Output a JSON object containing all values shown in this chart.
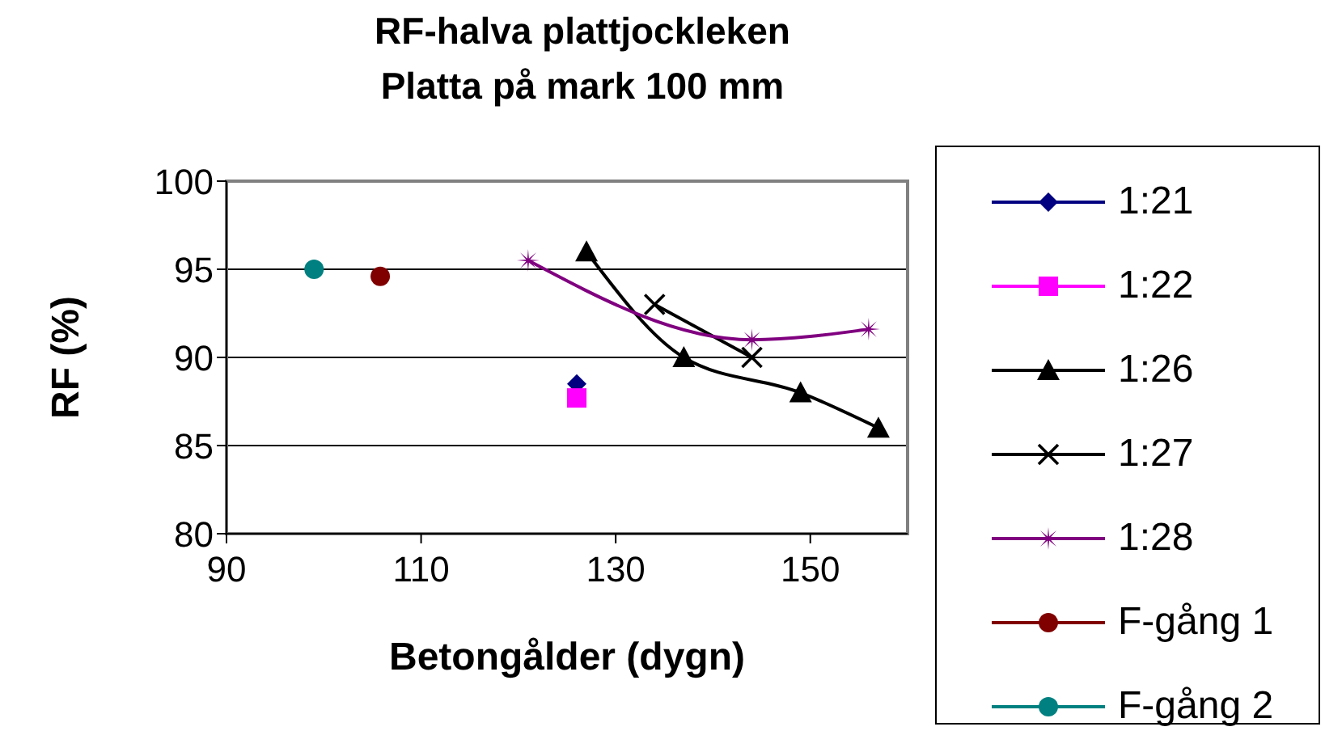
{
  "chart_data": {
    "type": "line",
    "title": "RF-halva plattjockleken",
    "subtitle": "Platta på mark 100 mm",
    "xlabel": "Betongålder (dygn)",
    "ylabel": "RF (%)",
    "xlim": [
      90,
      160
    ],
    "xticks": [
      90,
      110,
      130,
      150
    ],
    "ylim": [
      80,
      100
    ],
    "yticks": [
      80,
      85,
      90,
      95,
      100
    ],
    "grid": "y",
    "legend": "right",
    "series": [
      {
        "name": "1:21",
        "color": "#000080",
        "marker": "diamond",
        "x": [
          126
        ],
        "values": [
          88.5
        ]
      },
      {
        "name": "1:22",
        "color": "#ff00ff",
        "marker": "square",
        "x": [
          126
        ],
        "values": [
          87.7
        ]
      },
      {
        "name": "1:26",
        "color": "#000000",
        "marker": "triangle",
        "x": [
          127,
          137,
          149,
          157
        ],
        "values": [
          96,
          90,
          88,
          86
        ]
      },
      {
        "name": "1:27",
        "color": "#000000",
        "marker": "cross",
        "x": [
          134,
          144
        ],
        "values": [
          93,
          90
        ]
      },
      {
        "name": "1:28",
        "color": "#800080",
        "marker": "star",
        "x": [
          121,
          144,
          156
        ],
        "values": [
          95.5,
          91,
          91.6
        ]
      },
      {
        "name": "F-gång 1",
        "color": "#800000",
        "marker": "circle",
        "x": [
          105.8
        ],
        "values": [
          94.6
        ]
      },
      {
        "name": "F-gång 2",
        "color": "#008080",
        "marker": "circle",
        "x": [
          99
        ],
        "values": [
          95
        ]
      }
    ]
  }
}
